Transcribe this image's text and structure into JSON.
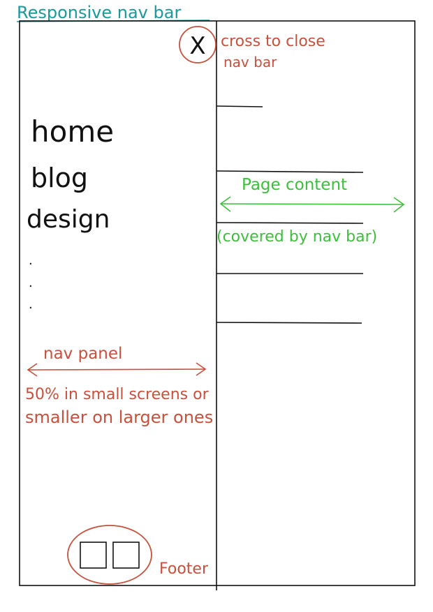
{
  "title": "Responsive nav bar",
  "nav": {
    "items": [
      "home",
      "blog",
      "design"
    ],
    "ellipsis": [
      ".",
      ".",
      "."
    ]
  },
  "annotations": {
    "close_line1": "cross to close",
    "close_line2": "nav bar",
    "close_symbol": "X",
    "page_content": "Page content",
    "covered": "(covered by nav bar)",
    "nav_panel": "nav panel",
    "size_line1": "50% in small screens or",
    "size_line2": "smaller on larger ones",
    "footer": "Footer"
  },
  "colors": {
    "ink": "#111111",
    "red": "#c8503c",
    "green": "#3cbf3c",
    "teal": "#1a9a9a"
  },
  "icons": [
    "close-icon",
    "footer-square-icon",
    "footer-square-icon"
  ]
}
